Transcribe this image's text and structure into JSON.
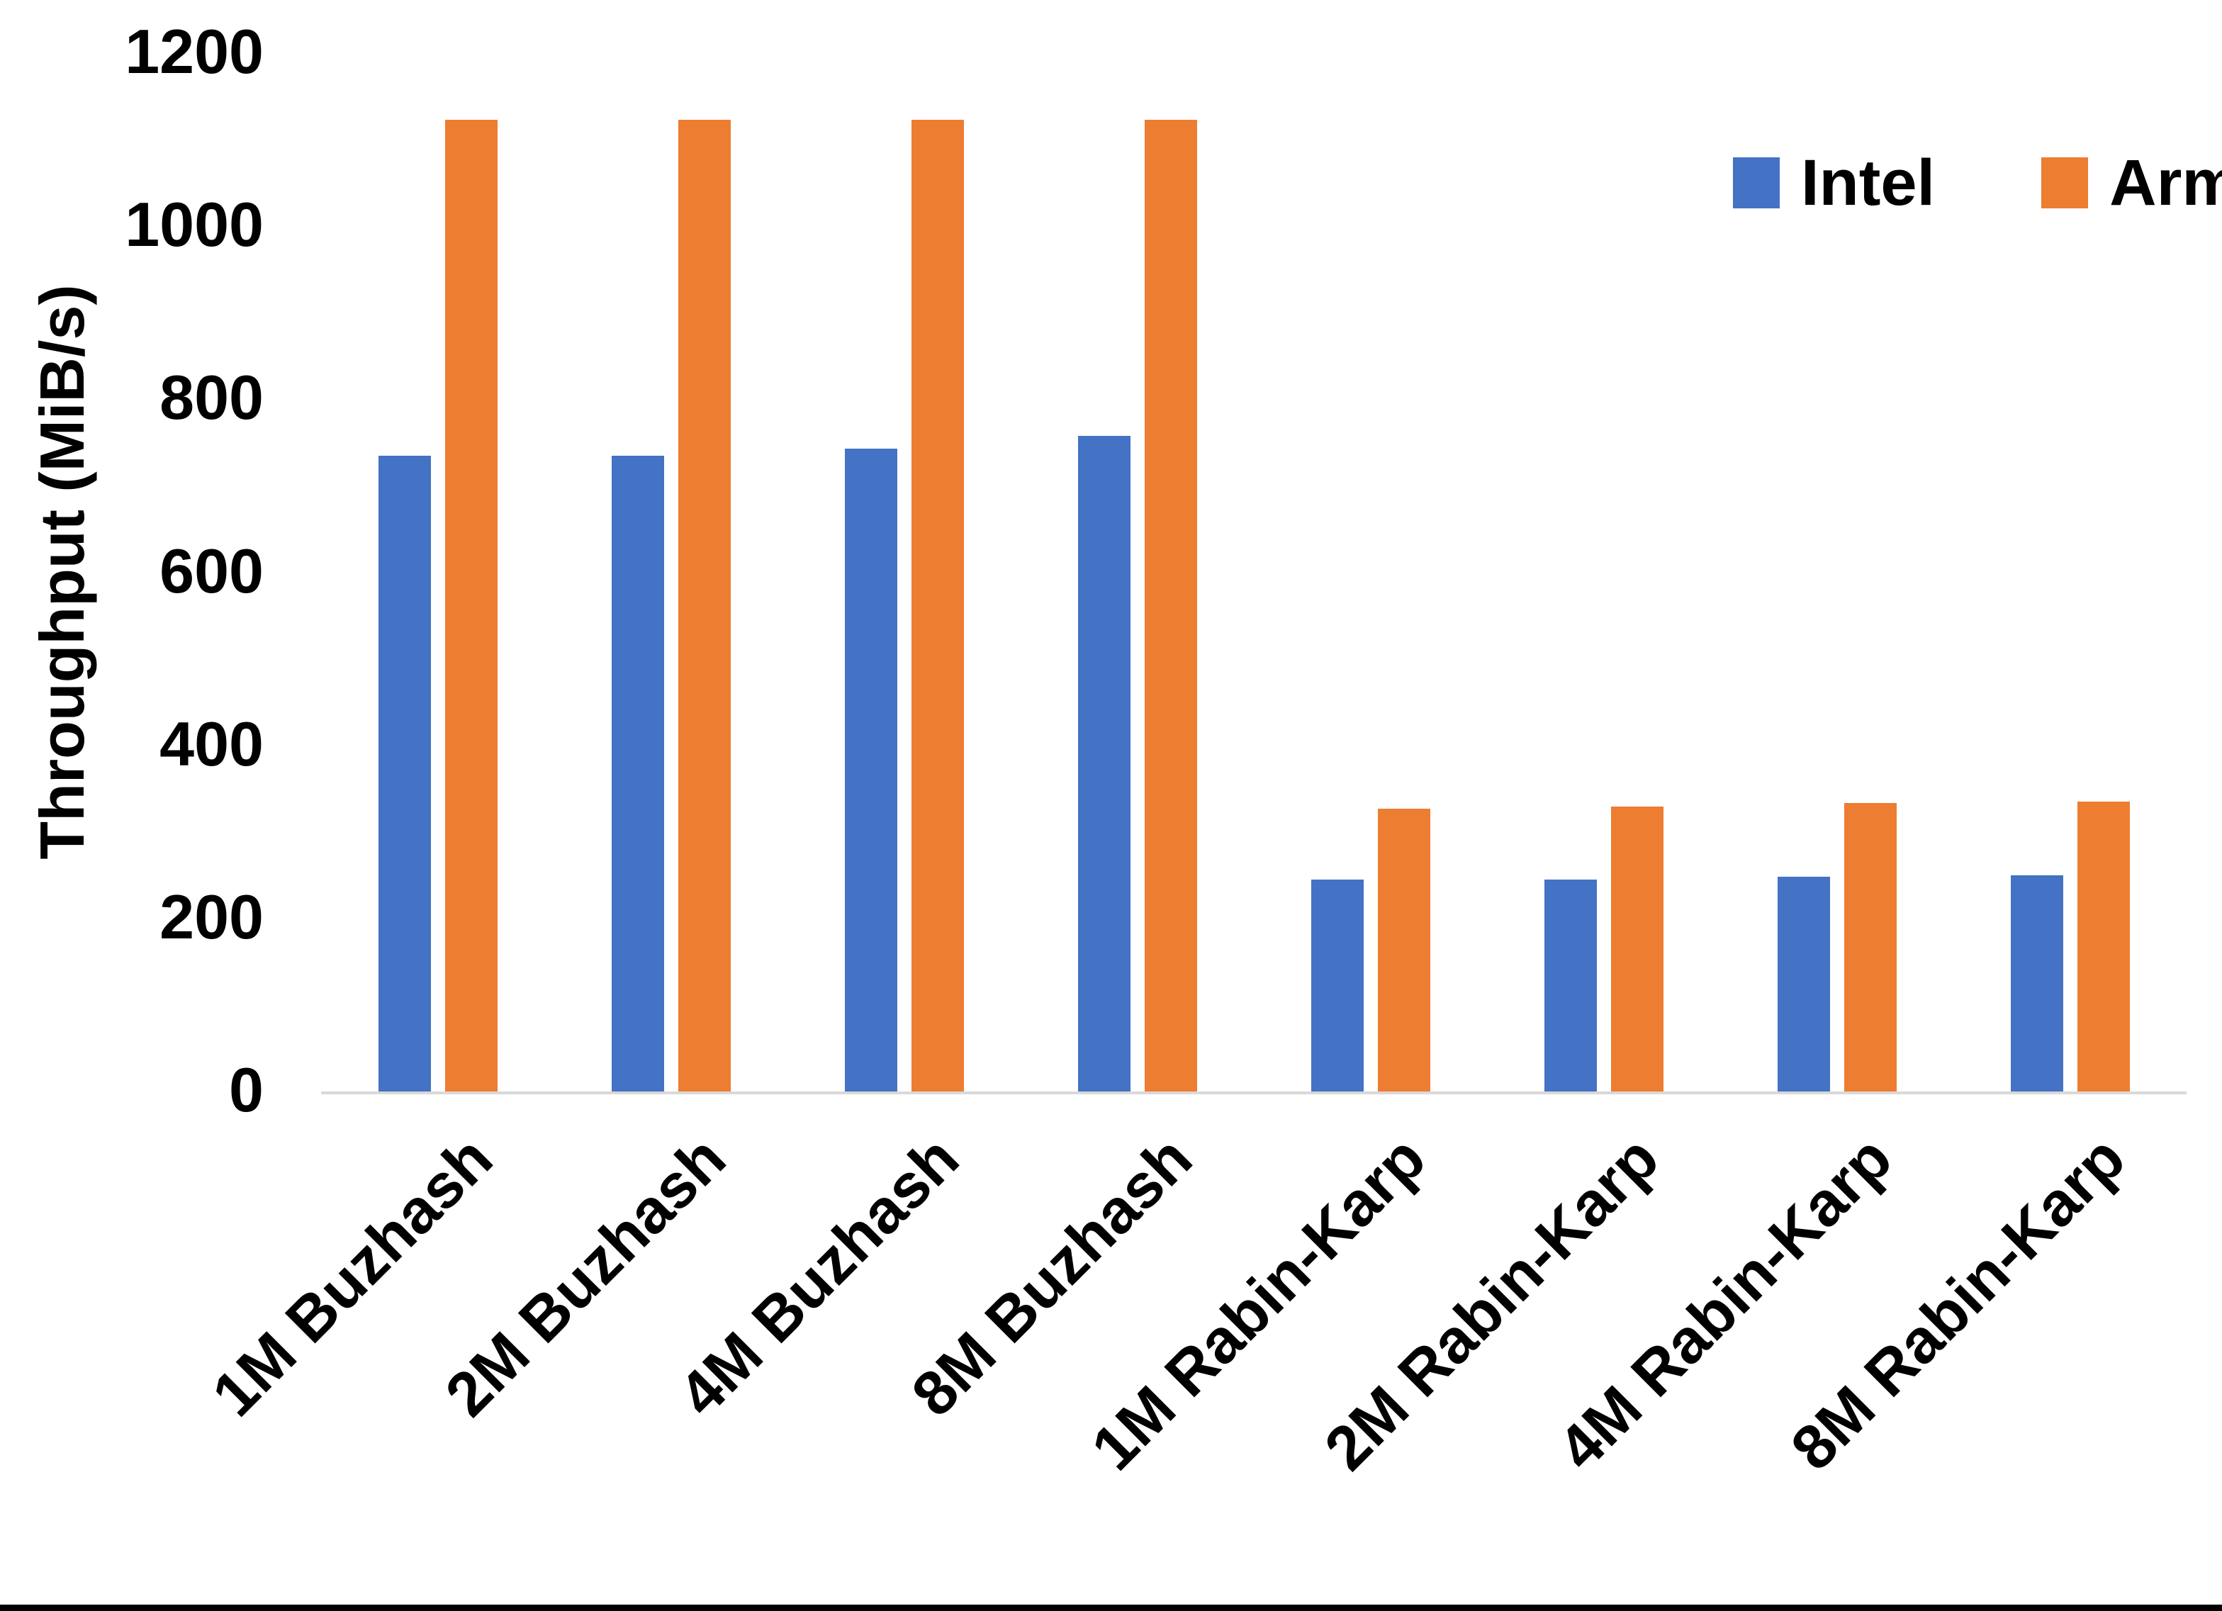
{
  "page": {
    "background": "#ffffff",
    "bottom_border_color": "#000000"
  },
  "chart_data": {
    "type": "bar",
    "title": "",
    "xlabel": "",
    "ylabel": "Throughput (MiB/s)",
    "ylim": [
      0,
      1200
    ],
    "ytick_interval": 200,
    "yticks": [
      0,
      200,
      400,
      600,
      800,
      1000,
      1200
    ],
    "grid": false,
    "legend_position": "top-right",
    "axis_line_color": "#D9D9D9",
    "text_color": "#000000",
    "categories": [
      "1M Buzhash",
      "2M Buzhash",
      "4M Buzhash",
      "8M Buzhash",
      "1M Rabin-Karp",
      "2M Rabin-Karp",
      "4M Rabin-Karp",
      "8M Rabin-Karp"
    ],
    "series": [
      {
        "name": "Intel",
        "color": "#4472C4",
        "values": [
          735,
          735,
          743,
          758,
          245,
          245,
          248,
          250
        ]
      },
      {
        "name": "Arm",
        "color": "#ED7D31",
        "values": [
          1123,
          1123,
          1123,
          1123,
          327,
          329,
          333,
          335
        ]
      }
    ]
  }
}
